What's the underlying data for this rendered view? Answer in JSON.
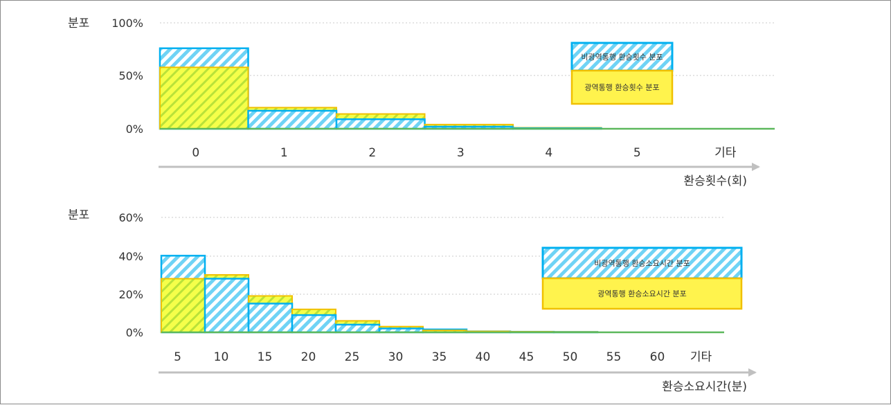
{
  "chart_data": [
    {
      "type": "bar",
      "ylabel": "분포",
      "xlabel": "환승횟수(회)",
      "categories": [
        "0",
        "1",
        "2",
        "3",
        "4",
        "5",
        "기타"
      ],
      "yticks": [
        "100%",
        "50%",
        "0%"
      ],
      "ylim": [
        0,
        100
      ],
      "legend_position": "top-right",
      "series": [
        {
          "name": "비광역통행 환승횟수 분포",
          "color": "#00b0f0",
          "values": [
            76,
            17,
            9,
            2,
            0.5,
            0.2,
            0.1
          ]
        },
        {
          "name": "광역통행 환승횟수 분포",
          "color": "#f0c000",
          "values": [
            58,
            20,
            14,
            4,
            1,
            0.3,
            0.1
          ]
        }
      ]
    },
    {
      "type": "bar",
      "ylabel": "분포",
      "xlabel": "환승소요시간(분)",
      "categories": [
        "5",
        "10",
        "15",
        "20",
        "25",
        "30",
        "35",
        "40",
        "45",
        "50",
        "55",
        "60",
        "기타"
      ],
      "yticks": [
        "60%",
        "40%",
        "20%",
        "0%"
      ],
      "ylim": [
        0,
        60
      ],
      "legend_position": "top-right",
      "series": [
        {
          "name": "비광역통행 환승소요시간 분포",
          "color": "#00b0f0",
          "values": [
            40,
            28,
            15,
            9,
            4,
            2,
            1.5,
            0.5,
            0.3,
            0.2,
            0.1,
            0.1,
            0.1
          ]
        },
        {
          "name": "광역통행 환승소요시간 분포",
          "color": "#f0c000",
          "values": [
            28,
            30,
            19,
            12,
            6,
            3,
            1,
            0.5,
            0.3,
            0.2,
            0.1,
            0.1,
            0.1
          ]
        }
      ]
    }
  ]
}
